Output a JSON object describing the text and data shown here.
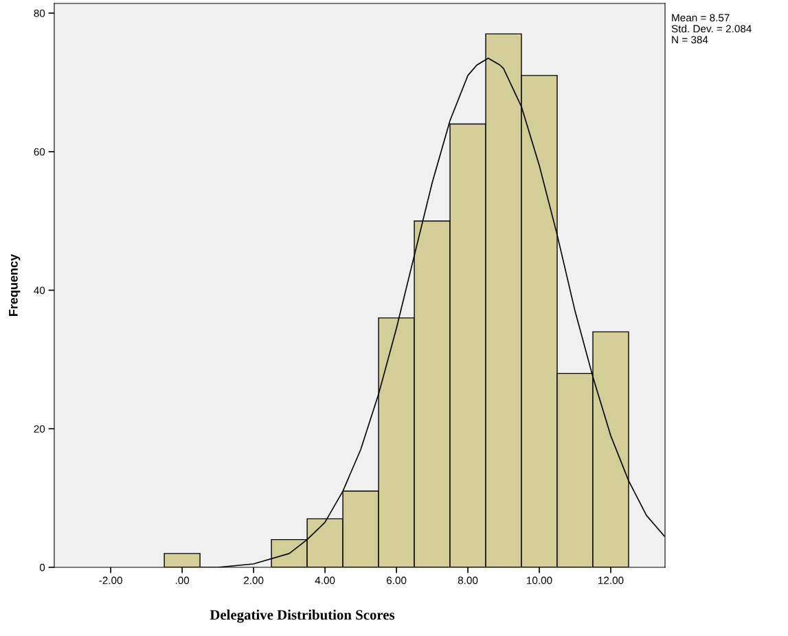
{
  "chart_data": {
    "type": "histogram",
    "xlabel": "Delegative Distribution Scores",
    "ylabel": "Frequency",
    "bins": [
      -0.5,
      0.5,
      1.5,
      2.5,
      3.5,
      4.5,
      5.5,
      6.5,
      7.5,
      8.5,
      9.5,
      10.5,
      11.5,
      12.5
    ],
    "values": [
      2,
      0,
      0,
      4,
      7,
      11,
      36,
      50,
      64,
      77,
      71,
      28,
      34
    ],
    "color": "#d3ce97",
    "series": [
      {
        "type": "line",
        "color": "#000000",
        "x": [
          0.5,
          1,
          2,
          3,
          3.5,
          4,
          4.5,
          5,
          5.5,
          6,
          6.5,
          7,
          7.5,
          8,
          8.25,
          8.57,
          8.9,
          9,
          9.5,
          10,
          10.5,
          11,
          11.5,
          12,
          12.5,
          13,
          13.5
        ],
        "values": [
          0,
          0,
          0.5,
          2,
          4,
          6.5,
          11,
          17,
          25,
          34.5,
          45,
          55.5,
          64.5,
          71,
          72.5,
          73.5,
          72.5,
          72,
          66.5,
          58,
          48,
          37,
          27.5,
          19,
          12.5,
          7.5,
          4.5
        ]
      }
    ],
    "xlim": [
      -3.58,
      13.52
    ],
    "ylim": [
      0,
      81.4
    ],
    "xticks": [
      {
        "value": -2,
        "label": "-2.00"
      },
      {
        "value": 0,
        "label": ".00"
      },
      {
        "value": 2,
        "label": "2.00"
      },
      {
        "value": 4,
        "label": "4.00"
      },
      {
        "value": 6,
        "label": "6.00"
      },
      {
        "value": 8,
        "label": "8.00"
      },
      {
        "value": 10,
        "label": "10.00"
      },
      {
        "value": 12,
        "label": "12.00"
      }
    ],
    "yticks": [
      0,
      20,
      40,
      60,
      80
    ],
    "grid": false,
    "annotations": [
      "Mean = 8.57",
      "Std. Dev. = 2.084",
      "N = 384"
    ]
  }
}
